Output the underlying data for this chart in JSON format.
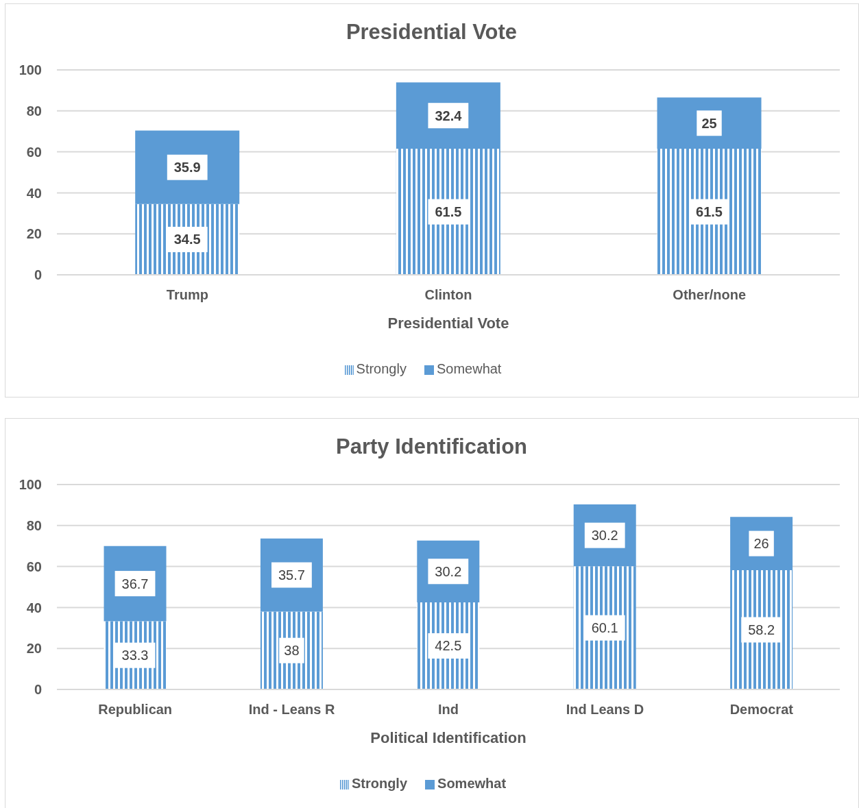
{
  "chart_data": [
    {
      "type": "bar",
      "title": "Presidential Vote",
      "xlabel": "Presidential Vote",
      "categories": [
        "Trump",
        "Clinton",
        "Other/none"
      ],
      "stacked": true,
      "series": [
        {
          "name": "Strongly",
          "color": "#5b9bd5",
          "values": [
            34.5,
            61.5,
            61.5
          ]
        },
        {
          "name": "Somewhat",
          "color": "#5b9bd5",
          "values": [
            35.9,
            32.4,
            25
          ]
        }
      ],
      "ylim": [
        0,
        100
      ],
      "yticks": [
        0,
        20,
        40,
        60,
        80,
        100
      ],
      "grid": "y",
      "legend": "bottom",
      "data_labels": true
    },
    {
      "type": "bar",
      "title": "Party Identification",
      "xlabel": "Political Identification",
      "categories": [
        "Republican",
        "Ind - Leans R",
        "Ind",
        "Ind Leans D",
        "Democrat"
      ],
      "stacked": true,
      "series": [
        {
          "name": "Strongly",
          "color": "#5b9bd5",
          "values": [
            33.3,
            38,
            42.5,
            60.1,
            58.2
          ]
        },
        {
          "name": "Somewhat",
          "color": "#5b9bd5",
          "values": [
            36.7,
            35.7,
            30.2,
            30.2,
            26
          ]
        }
      ],
      "ylim": [
        0,
        100
      ],
      "yticks": [
        0,
        20,
        40,
        60,
        80,
        100
      ],
      "grid": "y",
      "legend": "bottom",
      "data_labels": true
    }
  ]
}
